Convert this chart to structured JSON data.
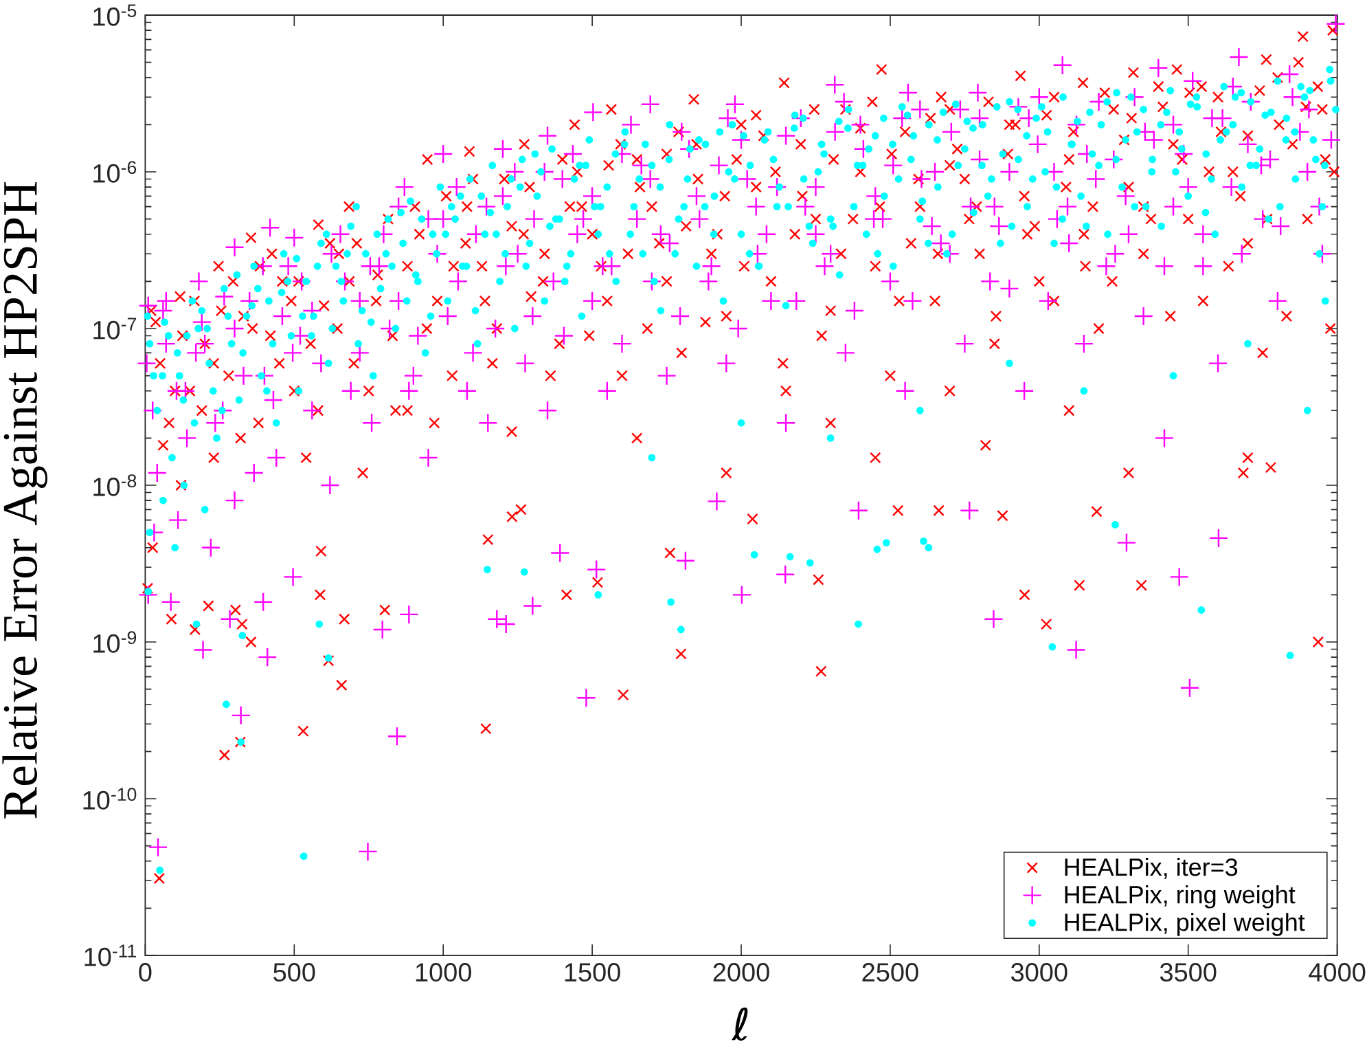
{
  "chart_data": {
    "type": "scatter",
    "xlabel": "ℓ",
    "ylabel": "Relative Error Against HP2SPH",
    "xlim": [
      0,
      4000
    ],
    "ylim": [
      1e-11,
      1e-05
    ],
    "xticks": [
      0,
      500,
      1000,
      1500,
      2000,
      2500,
      3000,
      3500,
      4000
    ],
    "yticks": [
      {
        "value": 1e-11,
        "label": "10$^{-11}$"
      },
      {
        "value": 1e-10,
        "label": "10$^{-10}$"
      },
      {
        "value": 1e-09,
        "label": "10$^{-9}$"
      },
      {
        "value": 1e-08,
        "label": "10$^{-8}$"
      },
      {
        "value": 1e-07,
        "label": "10$^{-7}$"
      },
      {
        "value": 1e-06,
        "label": "10$^{-6}$"
      },
      {
        "value": 1e-05,
        "label": "10$^{-5}$"
      }
    ],
    "log": true,
    "legend": "bottom right",
    "series": [
      {
        "name": "HEALPix, iter=3",
        "color": "#ff0000",
        "marker": "cross",
        "x": [
          20,
          117,
          246,
          355,
          581,
          684,
          947,
          1088,
          1272,
          1441,
          1564,
          1841,
          2144,
          2471,
          2671,
          2937,
          3147,
          3316,
          3462,
          3762,
          3885,
          3985,
          50,
          80,
          120,
          150,
          200,
          230,
          280,
          330,
          380,
          420,
          460,
          500,
          540,
          600,
          650,
          700,
          730,
          780,
          830,
          880,
          920,
          980,
          1030,
          1080,
          1130,
          1180,
          1230,
          1290,
          1340,
          1390,
          1450,
          1500,
          1550,
          1600,
          1650,
          1700,
          1750,
          1800,
          1850,
          1900,
          1950,
          2000,
          2050,
          2100,
          2150,
          2200,
          2250,
          2300,
          2350,
          2400,
          2450,
          2500,
          2550,
          2600,
          2650,
          2700,
          2750,
          2800,
          2850,
          2900,
          2950,
          3000,
          3050,
          3100,
          3150,
          3200,
          3250,
          3300,
          3350,
          3400,
          3450,
          3500,
          3550,
          3600,
          3650,
          3700,
          3750,
          3800,
          3850,
          3900,
          3950,
          3990,
          47,
          266,
          319,
          530,
          1143,
          659,
          615,
          355,
          88,
          167,
          325,
          212,
          303,
          804,
          668,
          1414,
          587,
          1150,
          590,
          1231,
          1261,
          1604,
          2268,
          1798,
          1761,
          1518,
          2259,
          2038,
          2526,
          2663,
          3936,
          3024,
          2951,
          3135,
          3343,
          2877,
          3193,
          1650,
          1950,
          2300,
          2450,
          2700,
          3100,
          3300,
          3700,
          3977,
          3777,
          3685,
          2820,
          8,
          25,
          35,
          100,
          165,
          230,
          295,
          360,
          425,
          490,
          555,
          620,
          685,
          750,
          815,
          880,
          945,
          1010,
          1075,
          1140,
          1205,
          1270,
          1335,
          1400,
          1465,
          1530,
          1595,
          1660,
          1725,
          1790,
          1855,
          1920,
          1985,
          2050,
          2115,
          2180,
          2245,
          2310,
          2375,
          2440,
          2505,
          2570,
          2635,
          2700,
          2765,
          2830,
          2895,
          2960,
          3025,
          3090,
          3155,
          3220,
          3285,
          3350,
          3415,
          3480,
          3545,
          3610,
          3675,
          3740,
          3805,
          3870,
          3935,
          60,
          125,
          190,
          255,
          320,
          385,
          450,
          515,
          580,
          645,
          710,
          775,
          840,
          905,
          970,
          1035,
          1100,
          1165,
          1230,
          1295,
          1360,
          1425,
          1490,
          1555,
          1620,
          1685,
          1750,
          1815,
          1880,
          1945,
          2010,
          2075,
          2140,
          2205,
          2270,
          2335,
          2400,
          2465,
          2530,
          2595,
          2660,
          2725,
          2790,
          2855,
          2920,
          2985,
          3050,
          3115,
          3180,
          3245,
          3310,
          3375,
          3440,
          3505,
          3570,
          3635,
          3700,
          3765,
          3830,
          3895,
          3960
        ],
        "values": [
          1.3e-07,
          1.6e-07,
          2.5e-07,
          3.8e-07,
          4.6e-07,
          6e-07,
          1.2e-06,
          1.35e-06,
          1.5e-06,
          2e-06,
          2.5e-06,
          2.9e-06,
          3.7e-06,
          4.5e-06,
          3e-06,
          4.1e-06,
          3.7e-06,
          4.3e-06,
          4.5e-06,
          5.2e-06,
          7.3e-06,
          8e-06,
          6e-08,
          2.5e-08,
          1e-08,
          4e-08,
          8e-08,
          1.5e-08,
          5e-08,
          1.2e-07,
          2.5e-08,
          9e-08,
          2e-07,
          4e-08,
          1.5e-08,
          1.4e-07,
          3e-07,
          6e-08,
          1.2e-08,
          2.2e-07,
          9e-08,
          3e-08,
          4e-07,
          1.5e-07,
          5e-08,
          6e-07,
          2.5e-07,
          1e-07,
          2.2e-08,
          8e-07,
          3e-07,
          8e-08,
          1e-06,
          4e-07,
          1.5e-07,
          5e-08,
          1.2e-06,
          6e-07,
          2e-07,
          7e-08,
          1.5e-06,
          3e-07,
          1.2e-07,
          2e-06,
          8e-07,
          2e-07,
          4e-08,
          1.5e-06,
          5e-07,
          1.3e-07,
          2.5e-06,
          1e-06,
          2.5e-07,
          5e-08,
          1.8e-06,
          6e-07,
          1.5e-07,
          2.5e-06,
          9e-07,
          3e-07,
          8e-08,
          2e-06,
          7e-07,
          2e-07,
          3e-06,
          1.2e-06,
          4e-07,
          1e-07,
          2.5e-06,
          8e-07,
          3e-07,
          3.5e-06,
          1.5e-06,
          5e-07,
          1.5e-07,
          3e-06,
          1e-06,
          3.5e-07,
          7e-08,
          4e-06,
          1.5e-06,
          5e-07,
          2.5e-06,
          1e-06,
          3.1e-11,
          1.9e-10,
          2.3e-10,
          2.7e-10,
          2.8e-10,
          5.3e-10,
          7.6e-10,
          1e-09,
          1.4e-09,
          1.2e-09,
          1.3e-09,
          1.7e-09,
          1.6e-09,
          1.6e-09,
          1.4e-09,
          2e-09,
          2e-09,
          4.5e-09,
          3.8e-09,
          6.3e-09,
          7e-09,
          4.6e-10,
          6.5e-10,
          8.4e-10,
          3.7e-09,
          2.4e-09,
          2.5e-09,
          6.1e-09,
          6.9e-09,
          6.9e-09,
          1e-09,
          1.3e-09,
          2e-09,
          2.3e-09,
          2.3e-09,
          6.4e-09,
          6.8e-09,
          2e-08,
          1.2e-08,
          2.5e-08,
          1.5e-08,
          4e-08,
          3e-08,
          1.2e-08,
          1.5e-08,
          1e-07,
          1.3e-08,
          1.2e-08,
          1.8e-08,
          2.2e-09,
          4e-09,
          1.1e-07,
          4e-08,
          1.5e-07,
          6e-08,
          2e-07,
          1e-07,
          3e-07,
          1.5e-07,
          8e-08,
          3.5e-07,
          2e-07,
          4e-08,
          5e-07,
          2.5e-07,
          1e-07,
          7e-07,
          3.5e-07,
          1.5e-07,
          9e-07,
          4e-07,
          2e-07,
          1.2e-06,
          6e-07,
          2.5e-07,
          1.5e-06,
          8e-07,
          3.5e-07,
          1.8e-06,
          9e-07,
          4e-07,
          1.2e-06,
          2.3e-06,
          1e-06,
          4e-07,
          2.5e-06,
          1.2e-06,
          5e-07,
          2.8e-06,
          1.3e-06,
          3.5e-07,
          2.2e-06,
          1.1e-06,
          5e-07,
          2.8e-06,
          1.3e-06,
          4e-07,
          2.3e-06,
          8e-07,
          2.5e-07,
          3.2e-06,
          1.6e-06,
          6e-07,
          2.6e-06,
          1.2e-06,
          3.5e-06,
          1.8e-06,
          7e-07,
          3.3e-06,
          2e-06,
          5e-06,
          3.5e-06,
          1.8e-08,
          9e-08,
          3e-08,
          1.3e-07,
          2e-08,
          2.5e-07,
          6e-08,
          2e-07,
          3e-08,
          1e-07,
          3.5e-07,
          1.5e-07,
          3e-08,
          6e-07,
          2.5e-08,
          2.5e-07,
          9e-07,
          6e-08,
          4.5e-07,
          1.6e-07,
          5e-08,
          6e-07,
          9e-08,
          1.1e-06,
          3e-07,
          1e-07,
          1.3e-06,
          4.5e-07,
          1.1e-07,
          7e-07,
          2.5e-07,
          1.7e-06,
          6e-08,
          7e-07,
          9e-08,
          3e-07,
          1.9e-06,
          6e-07,
          1.5e-07,
          9e-07,
          3e-07,
          1.4e-06,
          6e-07,
          1.2e-07,
          2e-06,
          4.5e-07,
          1.5e-07,
          1.8e-06,
          6e-07,
          2e-07,
          2.2e-06,
          5e-07,
          1.2e-07,
          3.2e-06,
          1e-06,
          2.5e-07,
          1.7e-06,
          5e-07,
          1.2e-07,
          2.6e-06,
          1.2e-06
        ]
      },
      {
        "name": "HEALPix, ring weight",
        "color": "#ff00ff",
        "marker": "plus",
        "x": [
          10,
          60,
          180,
          300,
          419,
          500,
          870,
          1000,
          1200,
          1350,
          1503,
          1695,
          1979,
          2314,
          2560,
          2794,
          3078,
          3400,
          3670,
          3995,
          25,
          70,
          110,
          140,
          190,
          220,
          260,
          300,
          350,
          400,
          440,
          480,
          520,
          560,
          620,
          670,
          720,
          760,
          800,
          850,
          900,
          950,
          1000,
          1050,
          1100,
          1150,
          1200,
          1250,
          1300,
          1350,
          1400,
          1450,
          1500,
          1550,
          1600,
          1650,
          1700,
          1750,
          1800,
          1850,
          1900,
          1950,
          2000,
          2050,
          2100,
          2150,
          2200,
          2250,
          2300,
          2350,
          2400,
          2450,
          2500,
          2550,
          2600,
          2650,
          2700,
          2750,
          2800,
          2850,
          2900,
          2950,
          3000,
          3050,
          3100,
          3150,
          3200,
          3250,
          3300,
          3350,
          3420,
          3450,
          3500,
          3550,
          3600,
          3650,
          3700,
          3750,
          3800,
          3850,
          3900,
          3950,
          3980,
          43,
          747,
          321,
          845,
          1480,
          410,
          194,
          885,
          1180,
          1211,
          1300,
          396,
          796,
          284,
          86,
          1392,
          496,
          1813,
          2002,
          2148,
          1514,
          2847,
          1918,
          2394,
          2766,
          3124,
          3505,
          3470,
          3293,
          3602,
          10,
          30,
          5,
          70,
          135,
          200,
          265,
          330,
          395,
          460,
          525,
          590,
          655,
          720,
          785,
          850,
          915,
          980,
          1045,
          1110,
          1175,
          1240,
          1305,
          1370,
          1435,
          1500,
          1565,
          1630,
          1695,
          1760,
          1825,
          1890,
          1955,
          2020,
          2085,
          2150,
          2215,
          2280,
          2345,
          2410,
          2475,
          2540,
          2605,
          2670,
          2735,
          2800,
          2865,
          2930,
          2995,
          3060,
          3125,
          3190,
          3255,
          3320,
          3385,
          3450,
          3515,
          3580,
          3645,
          3710,
          3775,
          3840,
          3905,
          40,
          105,
          170,
          235,
          300,
          365,
          430,
          495,
          560,
          625,
          690,
          755,
          820,
          885,
          950,
          1015,
          1080,
          1145,
          1210,
          1275,
          1340,
          1405,
          1470,
          1535,
          1600,
          1665,
          1730,
          1795,
          1860,
          1925,
          1990,
          2055,
          2120,
          2185,
          2250,
          2315,
          2380,
          2445,
          2510,
          2575,
          2640,
          2705,
          2770,
          2835,
          2900,
          2965,
          3030,
          3095,
          3160,
          3225,
          3290,
          3355,
          3420,
          3485,
          3550,
          3615,
          3680,
          3745,
          3810,
          3875,
          3940
        ],
        "values": [
          1.4e-07,
          1.3e-07,
          2e-07,
          3.3e-07,
          4.4e-07,
          3.8e-07,
          8e-07,
          1.3e-06,
          1.4e-06,
          1.7e-06,
          2.4e-06,
          2.7e-06,
          2.7e-06,
          3.6e-06,
          3.2e-06,
          3.2e-06,
          4.8e-06,
          4.6e-06,
          5.4e-06,
          8.8e-06,
          3e-08,
          8e-08,
          6e-09,
          2e-08,
          1.1e-07,
          4e-09,
          3e-08,
          8e-09,
          1.5e-07,
          5e-08,
          1.5e-08,
          2.5e-07,
          9e-08,
          3e-08,
          1e-08,
          2e-07,
          7e-08,
          2.5e-08,
          4e-07,
          1.5e-07,
          5e-08,
          1.5e-08,
          5e-07,
          2e-07,
          7e-08,
          2.5e-08,
          7e-07,
          3e-07,
          1.2e-07,
          3e-08,
          9e-07,
          4e-07,
          1.5e-07,
          4e-08,
          1.3e-06,
          5e-07,
          2e-07,
          5e-08,
          1.8e-06,
          7e-07,
          2.5e-07,
          6e-08,
          1.6e-06,
          6e-07,
          1.5e-07,
          2.5e-08,
          2.2e-06,
          8e-07,
          3e-07,
          7e-08,
          2e-06,
          7e-07,
          2e-07,
          4e-08,
          2.5e-06,
          1e-06,
          3e-07,
          8e-08,
          2.2e-06,
          6e-07,
          1.8e-07,
          4e-08,
          3e-06,
          1e-06,
          3.5e-07,
          8e-08,
          2.8e-06,
          1.2e-06,
          4e-07,
          1.2e-07,
          2e-08,
          2e-06,
          8e-07,
          2.5e-07,
          6e-08,
          3.5e-06,
          1.5e-06,
          5e-07,
          1.5e-07,
          3e-06,
          1e-06,
          3e-07,
          1.6e-06,
          4.9e-11,
          4.6e-11,
          3.4e-10,
          2.5e-10,
          4.4e-10,
          8e-10,
          8.9e-10,
          1.5e-09,
          1.4e-09,
          1.3e-09,
          1.7e-09,
          1.8e-09,
          1.2e-09,
          1.4e-09,
          1.8e-09,
          3.7e-09,
          2.6e-09,
          3.3e-09,
          2e-09,
          2.7e-09,
          2.9e-09,
          1.4e-09,
          7.9e-09,
          6.9e-09,
          6.9e-09,
          8.9e-10,
          5.1e-10,
          2.6e-09,
          4.3e-09,
          4.6e-09,
          2e-09,
          5e-09,
          6e-08,
          1.5e-07,
          4e-08,
          8e-08,
          1.6e-07,
          5e-08,
          2.5e-07,
          1.2e-07,
          2e-07,
          6e-08,
          4e-07,
          1.5e-07,
          2.5e-07,
          6e-07,
          9e-08,
          3e-07,
          8e-07,
          4e-07,
          1e-07,
          1e-06,
          5e-07,
          2e-07,
          1.3e-06,
          7e-07,
          2.5e-07,
          2e-06,
          9e-07,
          3.5e-07,
          1.4e-06,
          2e-07,
          2.2e-06,
          9e-07,
          4e-07,
          1.7e-06,
          6e-07,
          2.5e-07,
          2.8e-06,
          1.4e-06,
          5e-07,
          2.2e-06,
          9e-07,
          3.5e-07,
          2.5e-06,
          1.2e-06,
          4.5e-07,
          2.6e-06,
          1.5e-06,
          5e-07,
          2e-06,
          9e-07,
          3e-07,
          3e-06,
          1.6e-06,
          6e-07,
          3.8e-06,
          2.2e-06,
          8e-07,
          2.8e-06,
          1.2e-06,
          4.2e-06,
          2.5e-06,
          1.2e-08,
          4e-08,
          7e-08,
          2.5e-08,
          1e-07,
          1.2e-08,
          3.5e-08,
          7e-08,
          1.3e-07,
          3e-07,
          4e-08,
          2.5e-07,
          1e-07,
          4e-08,
          5e-07,
          1.2e-07,
          4e-08,
          6e-07,
          2.5e-07,
          6e-08,
          1e-06,
          9e-08,
          5e-07,
          2.5e-07,
          8e-08,
          1.1e-06,
          4e-07,
          1.2e-07,
          5e-07,
          1.1e-06,
          1e-07,
          3e-07,
          8e-07,
          1.5e-07,
          4e-07,
          1.8e-06,
          1.3e-07,
          5e-07,
          1.1e-06,
          1.5e-07,
          4.5e-07,
          1.8e-06,
          6e-07,
          2e-07,
          1e-06,
          2.2e-06,
          1.5e-07,
          6e-07,
          1.3e-06,
          2.5e-07,
          7e-07,
          1.8e-06,
          2.5e-07,
          1.3e-06,
          4e-07,
          2.2e-06,
          3e-07,
          1.1e-06,
          4.5e-07,
          1.8e-06,
          6e-07
        ]
      },
      {
        "name": "HEALPix, pixel weight",
        "color": "#00ffff",
        "marker": "circle",
        "x": [
          15,
          40,
          65,
          90,
          115,
          140,
          165,
          190,
          215,
          240,
          265,
          290,
          315,
          340,
          365,
          390,
          415,
          440,
          465,
          490,
          515,
          540,
          565,
          590,
          615,
          640,
          665,
          690,
          715,
          740,
          765,
          790,
          815,
          840,
          865,
          890,
          915,
          940,
          965,
          990,
          1015,
          1040,
          1065,
          1090,
          1115,
          1140,
          1165,
          1190,
          1215,
          1240,
          1265,
          1290,
          1315,
          1340,
          1365,
          1390,
          1415,
          1440,
          1465,
          1490,
          1520,
          1550,
          1580,
          1610,
          1640,
          1670,
          1700,
          1730,
          1760,
          1790,
          1820,
          1850,
          1880,
          1910,
          1940,
          1970,
          2000,
          2030,
          2060,
          2090,
          2120,
          2150,
          2180,
          2210,
          2240,
          2270,
          2300,
          2330,
          2360,
          2390,
          2420,
          2450,
          2480,
          2510,
          2540,
          2570,
          2600,
          2630,
          2660,
          2690,
          2720,
          2750,
          2780,
          2810,
          2840,
          2870,
          2900,
          2930,
          2960,
          2990,
          3020,
          3050,
          3080,
          3110,
          3140,
          3170,
          3200,
          3230,
          3260,
          3290,
          3320,
          3350,
          3380,
          3410,
          3440,
          3470,
          3500,
          3530,
          3560,
          3590,
          3620,
          3650,
          3680,
          3710,
          3740,
          3770,
          3800,
          3830,
          3860,
          3890,
          3920,
          3950,
          3975,
          3995,
          3940,
          49,
          532,
          272,
          321,
          326,
          584,
          615,
          1148,
          1272,
          172,
          1764,
          1798,
          2044,
          2164,
          2231,
          2393,
          2456,
          2487,
          2612,
          2629,
          1520,
          3044,
          3842,
          3544,
          3255,
          3900,
          3960,
          3700,
          3450,
          3150,
          2900,
          2600,
          2300,
          2000,
          1700,
          10,
          15,
          60,
          100,
          130,
          200,
          28,
          78,
          128,
          178,
          228,
          278,
          328,
          378,
          428,
          478,
          528,
          578,
          628,
          678,
          728,
          778,
          828,
          878,
          928,
          978,
          1028,
          1078,
          1128,
          1178,
          1228,
          1278,
          1328,
          1378,
          1428,
          1478,
          1528,
          1578,
          1628,
          1678,
          1728,
          1778,
          1828,
          1878,
          1928,
          1978,
          2028,
          2078,
          2128,
          2178,
          2228,
          2278,
          2328,
          2378,
          2428,
          2478,
          2528,
          2578,
          2628,
          2678,
          2728,
          2778,
          2828,
          2878,
          2928,
          2978,
          3028,
          3078,
          3128,
          3178,
          3228,
          3278,
          3328,
          3378,
          3428,
          3478,
          3528,
          3578,
          3628,
          3678,
          3728,
          3778,
          3828,
          3878,
          3928,
          3978,
          8,
          58,
          108,
          158,
          208,
          258,
          308,
          358,
          408,
          458,
          508,
          558,
          608,
          658,
          708,
          758,
          808,
          858,
          908,
          958,
          1008,
          1058,
          1108,
          1158,
          1208,
          1258,
          1308,
          1358,
          1408,
          1458,
          1508,
          1558,
          1608,
          1658,
          1708,
          1758,
          1808,
          1858,
          1908,
          1958,
          2008,
          2058,
          2108,
          2158,
          2208,
          2258,
          2308,
          2358,
          2408,
          2458,
          2508,
          2558,
          2608,
          2658,
          2708,
          2758,
          2808,
          2858,
          2908,
          2958,
          3008,
          3058,
          3108,
          3158,
          3208,
          3258,
          3308,
          3358,
          3408,
          3458,
          3508,
          3558,
          3608,
          3658,
          3708,
          3758,
          3808,
          3858,
          3908,
          3958
        ],
        "values": [
          8e-08,
          3e-08,
          1.1e-07,
          1.5e-08,
          5e-08,
          9e-08,
          2.5e-08,
          1.3e-07,
          6e-08,
          2e-08,
          1.8e-07,
          8e-08,
          3.5e-08,
          1.2e-07,
          2.5e-07,
          5e-08,
          1.5e-07,
          2.5e-08,
          3e-07,
          9e-08,
          4e-08,
          2e-07,
          1.2e-07,
          3.5e-07,
          6e-08,
          2.5e-07,
          1.5e-07,
          4.5e-07,
          8e-08,
          3e-07,
          5e-08,
          1.8e-07,
          5e-07,
          1e-07,
          3.5e-07,
          6.5e-07,
          2e-07,
          7e-08,
          4e-07,
          8e-07,
          1.5e-07,
          5e-07,
          2.5e-07,
          9e-07,
          8e-08,
          4e-07,
          1.1e-06,
          2e-07,
          6e-07,
          1e-07,
          1.2e-06,
          3.5e-07,
          7e-07,
          1.5e-07,
          1.4e-06,
          5e-07,
          2.5e-07,
          9e-07,
          1.2e-07,
          1.6e-06,
          4e-07,
          8e-07,
          2e-07,
          1.8e-06,
          6e-07,
          3e-07,
          1.1e-06,
          1.3e-07,
          2e-06,
          5e-07,
          9e-07,
          2.5e-07,
          1.5e-06,
          7e-07,
          1.5e-07,
          2e-06,
          4e-07,
          1.1e-06,
          2.5e-07,
          1.8e-06,
          6e-07,
          1.4e-07,
          2.3e-06,
          9e-07,
          3.5e-07,
          1.5e-06,
          5e-07,
          2.2e-07,
          2.5e-06,
          1.1e-06,
          4e-07,
          1.7e-06,
          7e-07,
          2.5e-07,
          2.6e-06,
          1.2e-06,
          5e-07,
          2e-06,
          8e-07,
          3e-07,
          2.7e-06,
          1.4e-06,
          5.5e-07,
          2e-06,
          9e-07,
          3.5e-07,
          2.8e-06,
          1.2e-06,
          6e-07,
          2.2e-06,
          1e-06,
          3.5e-07,
          3e-06,
          1.5e-06,
          7e-07,
          2.4e-06,
          1.1e-06,
          4e-07,
          3.2e-06,
          1.6e-06,
          6e-07,
          2.5e-06,
          1.2e-06,
          4.5e-07,
          3.3e-06,
          1.8e-06,
          7e-07,
          2.6e-06,
          1.3e-06,
          4e-07,
          3.5e-06,
          2e-06,
          8e-07,
          2.8e-06,
          1.4e-06,
          5e-07,
          3.8e-06,
          2.2e-06,
          9e-07,
          3e-06,
          1.6e-06,
          6e-07,
          4.5e-06,
          2.5e-06,
          3e-07,
          3.5e-11,
          4.3e-11,
          4e-10,
          2.3e-10,
          1.1e-09,
          1.3e-09,
          7.9e-10,
          2.9e-09,
          2.8e-09,
          1.3e-09,
          1.8e-09,
          1.2e-09,
          3.6e-09,
          3.5e-09,
          3.2e-09,
          1.3e-09,
          3.9e-09,
          4.3e-09,
          4.4e-09,
          4e-09,
          2e-09,
          9.3e-10,
          8.2e-10,
          1.6e-09,
          5.6e-09,
          3e-08,
          1.5e-07,
          8e-08,
          5e-08,
          4e-08,
          6e-08,
          3e-08,
          2e-08,
          2.5e-08,
          1.5e-08,
          2.1e-09,
          5e-09,
          8e-09,
          4e-09,
          1e-08,
          7e-09,
          5e-08,
          9e-08,
          3.5e-08,
          1e-07,
          4e-08,
          1.2e-07,
          7e-08,
          1.8e-07,
          8e-08,
          2e-07,
          1.2e-07,
          2.5e-07,
          1e-07,
          3e-07,
          1.3e-07,
          4e-07,
          2.5e-07,
          1.5e-07,
          5e-07,
          3e-07,
          6e-07,
          2.5e-07,
          7e-07,
          4e-07,
          9e-07,
          2.5e-07,
          1e-06,
          5e-07,
          3e-07,
          1.1e-06,
          6e-07,
          1.3e-06,
          4e-07,
          1.5e-06,
          8e-07,
          3e-07,
          1.4e-06,
          6e-07,
          1.8e-06,
          9e-07,
          3e-07,
          1.6e-06,
          8e-07,
          1.9e-06,
          4.5e-07,
          1.3e-06,
          2.1e-06,
          6e-07,
          1.4e-06,
          2.2e-06,
          9e-07,
          1.7e-06,
          3.5e-07,
          2.4e-06,
          1.1e-06,
          1.9e-06,
          7e-07,
          1.3e-06,
          2.5e-06,
          9e-07,
          1.8e-06,
          5e-07,
          2.1e-06,
          1.3e-06,
          2.8e-06,
          8e-07,
          1.8e-06,
          1e-06,
          2.4e-06,
          1.4e-06,
          3e-06,
          9e-07,
          1.8e-06,
          3.2e-06,
          1.1e-06,
          2.4e-06,
          1.6e-06,
          3.5e-06,
          1.2e-06,
          3.8e-06,
          1.2e-07,
          5e-08,
          7e-08,
          1.5e-07,
          1e-07,
          3e-08,
          2.2e-07,
          1.4e-07,
          4e-08,
          1.7e-07,
          2.8e-07,
          9e-08,
          4e-07,
          2e-07,
          6e-07,
          1.1e-07,
          3e-07,
          5.5e-07,
          2.2e-07,
          1.2e-07,
          4e-07,
          7e-07,
          1.3e-07,
          5.5e-07,
          3e-07,
          8e-07,
          1.3e-06,
          4.5e-07,
          2e-07,
          1.1e-06,
          6e-07,
          3e-07,
          1.5e-06,
          9e-07,
          2e-07,
          1.2e-06,
          6e-07,
          1.6e-06,
          4e-07,
          1e-06,
          1.7e-06,
          2.5e-07,
          1.2e-06,
          6e-07,
          2.2e-06,
          1e-06,
          4.5e-07,
          1.9e-06,
          1.1e-06,
          3e-07,
          1.5e-06,
          2.3e-06,
          6.5e-07,
          1.6e-06,
          4e-07,
          2.1e-06,
          1.1e-06,
          2.6e-06,
          4.5e-07,
          1.7e-06,
          2.6e-06,
          8e-07,
          1.5e-06,
          4.5e-07,
          2e-06,
          1.2e-06,
          3e-06,
          6e-07,
          2e-06,
          1e-06,
          2.7e-06,
          5.5e-07,
          1.6e-06,
          3e-06,
          1.1e-06,
          2.3e-06,
          6e-07,
          1.8e-06,
          3.3e-06,
          1.1e-06
        ]
      }
    ]
  }
}
